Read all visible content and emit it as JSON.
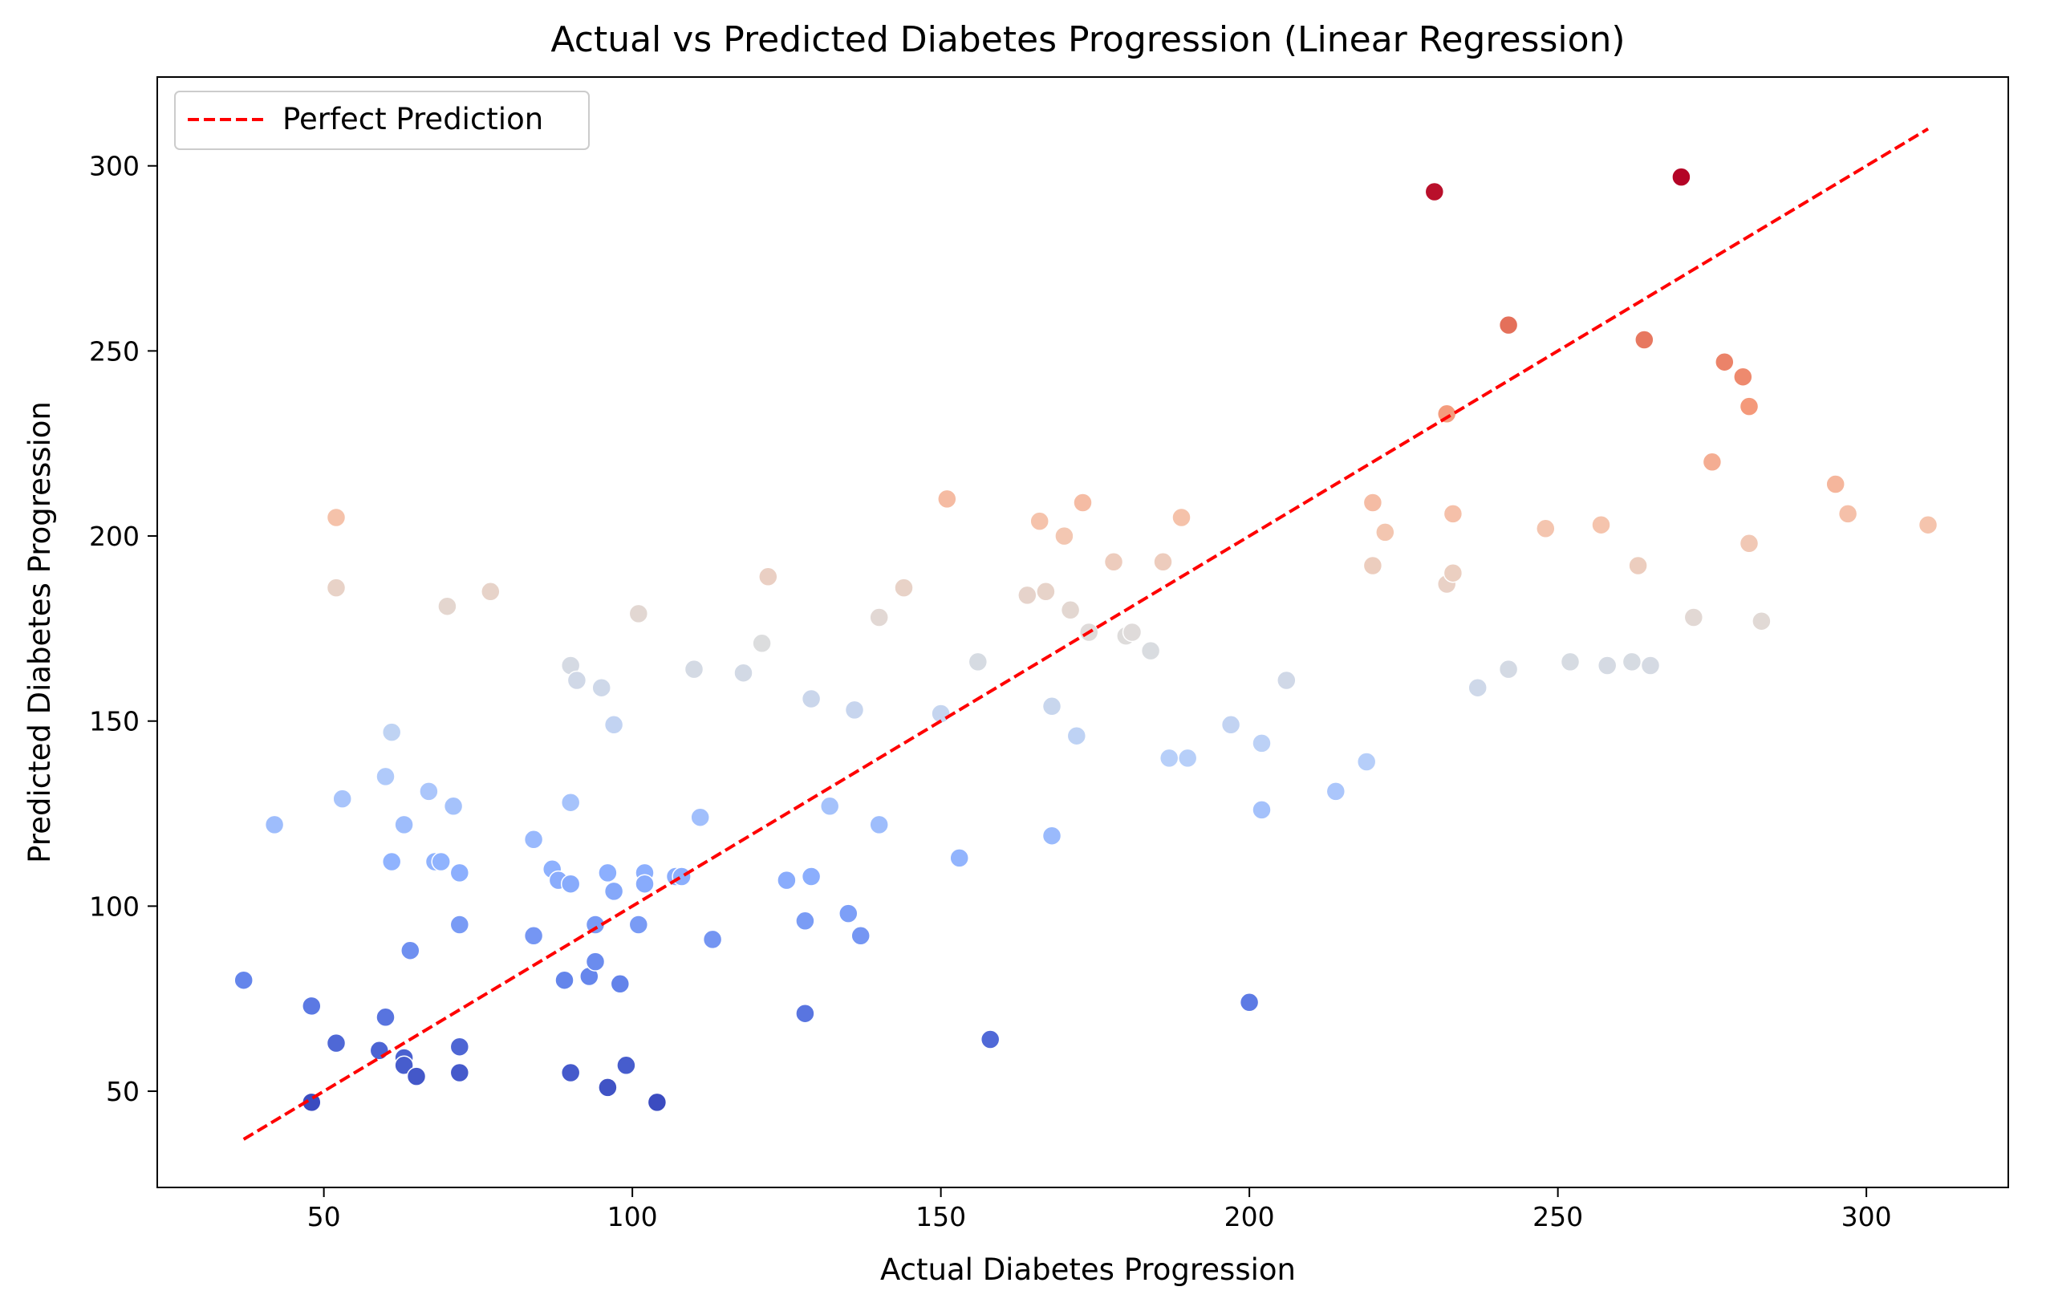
{
  "chart_data": {
    "type": "scatter",
    "title": "Actual vs Predicted Diabetes Progression (Linear Regression)",
    "xlabel": "Actual Diabetes Progression",
    "ylabel": "Predicted Diabetes Progression",
    "xlim": [
      23,
      323
    ],
    "ylim": [
      24,
      324
    ],
    "xticks": [
      50,
      100,
      150,
      200,
      250,
      300
    ],
    "yticks": [
      50,
      100,
      150,
      200,
      250,
      300
    ],
    "grid": false,
    "colormap": "coolwarm",
    "color_by": "predicted",
    "color_range": [
      47,
      297
    ],
    "legend": {
      "placement": "top-left",
      "entries": [
        {
          "label": "Perfect Prediction",
          "color": "#ff0000",
          "style": "dashed"
        }
      ]
    },
    "reference_line": {
      "name": "Perfect Prediction",
      "x": [
        37,
        310
      ],
      "y": [
        37,
        310
      ],
      "color": "#ff0000"
    },
    "series": [
      {
        "points": [
          [
            37,
            80
          ],
          [
            42,
            122
          ],
          [
            48,
            73
          ],
          [
            48,
            47
          ],
          [
            52,
            63
          ],
          [
            52,
            205
          ],
          [
            52,
            186
          ],
          [
            53,
            129
          ],
          [
            59,
            61
          ],
          [
            60,
            135
          ],
          [
            60,
            70
          ],
          [
            61,
            147
          ],
          [
            61,
            112
          ],
          [
            63,
            122
          ],
          [
            63,
            59
          ],
          [
            63,
            57
          ],
          [
            64,
            88
          ],
          [
            65,
            54
          ],
          [
            67,
            131
          ],
          [
            68,
            112
          ],
          [
            69,
            112
          ],
          [
            70,
            181
          ],
          [
            71,
            127
          ],
          [
            72,
            109
          ],
          [
            72,
            95
          ],
          [
            72,
            62
          ],
          [
            72,
            55
          ],
          [
            77,
            185
          ],
          [
            84,
            118
          ],
          [
            84,
            92
          ],
          [
            87,
            110
          ],
          [
            88,
            107
          ],
          [
            89,
            80
          ],
          [
            90,
            165
          ],
          [
            90,
            128
          ],
          [
            90,
            106
          ],
          [
            90,
            55
          ],
          [
            91,
            161
          ],
          [
            93,
            81
          ],
          [
            94,
            95
          ],
          [
            94,
            85
          ],
          [
            95,
            159
          ],
          [
            96,
            109
          ],
          [
            96,
            51
          ],
          [
            97,
            149
          ],
          [
            97,
            104
          ],
          [
            98,
            79
          ],
          [
            99,
            57
          ],
          [
            101,
            179
          ],
          [
            101,
            95
          ],
          [
            102,
            109
          ],
          [
            102,
            106
          ],
          [
            104,
            47
          ],
          [
            107,
            108
          ],
          [
            108,
            108
          ],
          [
            110,
            164
          ],
          [
            111,
            124
          ],
          [
            113,
            91
          ],
          [
            118,
            163
          ],
          [
            121,
            171
          ],
          [
            122,
            189
          ],
          [
            125,
            107
          ],
          [
            128,
            96
          ],
          [
            128,
            71
          ],
          [
            129,
            156
          ],
          [
            129,
            108
          ],
          [
            132,
            127
          ],
          [
            135,
            98
          ],
          [
            136,
            153
          ],
          [
            137,
            92
          ],
          [
            140,
            178
          ],
          [
            140,
            122
          ],
          [
            144,
            186
          ],
          [
            150,
            152
          ],
          [
            151,
            210
          ],
          [
            153,
            113
          ],
          [
            156,
            166
          ],
          [
            158,
            64
          ],
          [
            164,
            184
          ],
          [
            166,
            204
          ],
          [
            167,
            185
          ],
          [
            168,
            154
          ],
          [
            168,
            119
          ],
          [
            170,
            200
          ],
          [
            171,
            180
          ],
          [
            172,
            146
          ],
          [
            173,
            209
          ],
          [
            174,
            174
          ],
          [
            178,
            193
          ],
          [
            180,
            173
          ],
          [
            181,
            174
          ],
          [
            184,
            169
          ],
          [
            186,
            193
          ],
          [
            187,
            140
          ],
          [
            189,
            205
          ],
          [
            190,
            140
          ],
          [
            197,
            149
          ],
          [
            200,
            74
          ],
          [
            202,
            144
          ],
          [
            202,
            126
          ],
          [
            206,
            161
          ],
          [
            214,
            131
          ],
          [
            219,
            139
          ],
          [
            220,
            209
          ],
          [
            220,
            192
          ],
          [
            222,
            201
          ],
          [
            230,
            293
          ],
          [
            232,
            233
          ],
          [
            232,
            187
          ],
          [
            233,
            206
          ],
          [
            233,
            190
          ],
          [
            237,
            159
          ],
          [
            242,
            257
          ],
          [
            242,
            164
          ],
          [
            248,
            202
          ],
          [
            252,
            166
          ],
          [
            257,
            203
          ],
          [
            258,
            165
          ],
          [
            262,
            166
          ],
          [
            263,
            192
          ],
          [
            264,
            253
          ],
          [
            265,
            165
          ],
          [
            270,
            297
          ],
          [
            272,
            178
          ],
          [
            275,
            220
          ],
          [
            277,
            247
          ],
          [
            280,
            243
          ],
          [
            281,
            235
          ],
          [
            281,
            198
          ],
          [
            283,
            177
          ],
          [
            295,
            214
          ],
          [
            297,
            206
          ],
          [
            310,
            203
          ]
        ]
      }
    ]
  }
}
